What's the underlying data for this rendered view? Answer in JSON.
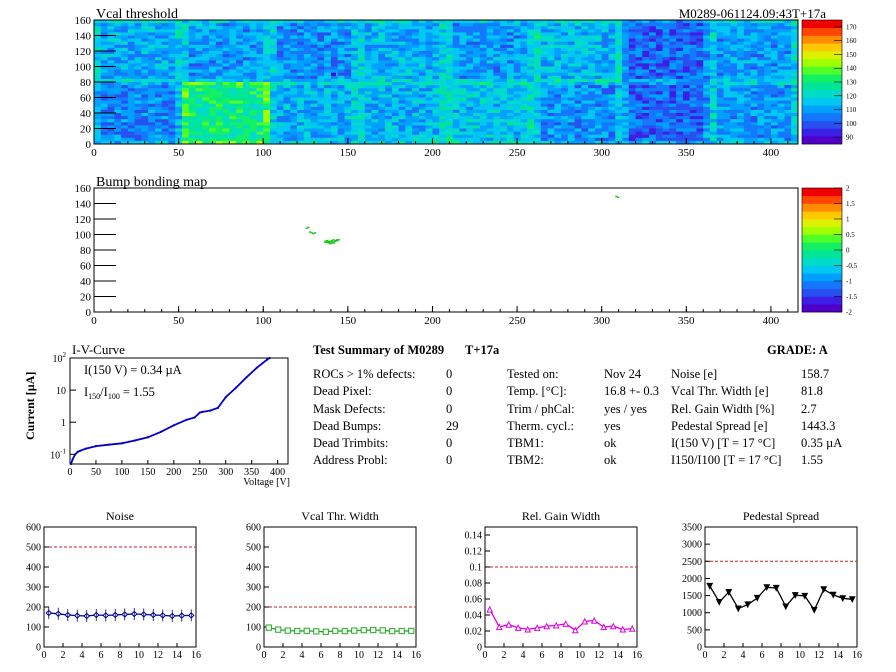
{
  "colors": {
    "palette": [
      "#5000c8",
      "#3c1ee6",
      "#2850f0",
      "#1478ff",
      "#00a0ff",
      "#00c8f0",
      "#00dcc8",
      "#00e696",
      "#14f064",
      "#50ff28",
      "#a0ff00",
      "#dcf000",
      "#ffc800",
      "#ff8c00",
      "#ff4600",
      "#f00000"
    ],
    "threshold_line": "#cc2222",
    "iv_curve": "#0000cc",
    "noise": "#00008b",
    "vcal": "#22aa22",
    "gain": "#e000e0",
    "pedestal": "#000000"
  },
  "vcal_map": {
    "title": "Vcal threshold",
    "run_label": "M0289-061124.09:43T+17a",
    "x_ticks": [
      "0",
      "50",
      "100",
      "150",
      "200",
      "250",
      "300",
      "350",
      "400"
    ],
    "y_ticks": [
      "0",
      "20",
      "40",
      "60",
      "80",
      "100",
      "120",
      "140",
      "160"
    ],
    "z_ticks": [
      "90",
      "100",
      "110",
      "120",
      "130",
      "140",
      "150",
      "160",
      "170"
    ]
  },
  "bump_map": {
    "title": "Bump bonding map",
    "x_ticks": [
      "0",
      "50",
      "100",
      "150",
      "200",
      "250",
      "300",
      "350",
      "400"
    ],
    "y_ticks": [
      "0",
      "20",
      "40",
      "60",
      "80",
      "100",
      "120",
      "140",
      "160"
    ],
    "z_ticks": [
      "-2",
      "-1.5",
      "-1",
      "-0.5",
      "0",
      "0.5",
      "1",
      "1.5",
      "2"
    ]
  },
  "iv": {
    "title": "I-V-Curve",
    "annotation_current": "I(150 V) = 0.34 µA",
    "annotation_ratio_label": "I",
    "annotation_ratio_sub1": "150",
    "annotation_ratio_slash": "/I",
    "annotation_ratio_sub2": "100",
    "annotation_ratio_value": "=  1.55",
    "ylabel": "Current [µA]",
    "xlabel": "Voltage [V]",
    "x_ticks": [
      "0",
      "50",
      "100",
      "150",
      "200",
      "250",
      "300",
      "350",
      "400"
    ],
    "y_ticks": [
      {
        "base": "10",
        "exp": "-1"
      },
      {
        "base": "1",
        "exp": ""
      },
      {
        "base": "10",
        "exp": ""
      },
      {
        "base": "10",
        "exp": "2"
      }
    ]
  },
  "summary": {
    "title": "Test Summary of M0289",
    "temp_tag": "T+17a",
    "grade": "GRADE:  A",
    "defects": [
      {
        "label": "ROCs > 1% defects:",
        "value": "0"
      },
      {
        "label": "Dead Pixel:",
        "value": "0"
      },
      {
        "label": "Mask Defects:",
        "value": "0"
      },
      {
        "label": "Dead Bumps:",
        "value": "29"
      },
      {
        "label": "Dead Trimbits:",
        "value": "0"
      },
      {
        "label": "Address Probl:",
        "value": "0"
      }
    ],
    "conditions": [
      {
        "label": "Tested on:",
        "value": "Nov 24"
      },
      {
        "label": "Temp. [°C]:",
        "value": "16.8 +- 0.3"
      },
      {
        "label": "Trim / phCal:",
        "value": "yes / yes"
      },
      {
        "label": "Therm. cycl.:",
        "value": "yes"
      },
      {
        "label": "TBM1:",
        "value": "ok"
      },
      {
        "label": "TBM2:",
        "value": "ok"
      }
    ],
    "results": [
      {
        "label": "Noise [e]",
        "value": "158.7"
      },
      {
        "label": "Vcal Thr. Width [e]",
        "value": "81.8"
      },
      {
        "label": "Rel. Gain Width [%]",
        "value": "2.7"
      },
      {
        "label": "Pedestal Spread [e]",
        "value": "1443.3"
      },
      {
        "label": "I(150 V) [T = 17 °C]",
        "value": "0.35 µA"
      },
      {
        "label": "I150/I100 [T = 17 °C]",
        "value": "1.55"
      }
    ]
  },
  "chart_data": [
    {
      "type": "heatmap",
      "title": "Vcal threshold",
      "xlim": [
        0,
        416
      ],
      "ylim": [
        0,
        160
      ],
      "zlim": [
        85,
        175
      ],
      "roc_means_top": [
        112,
        110,
        108,
        112,
        110,
        114,
        102,
        110
      ],
      "roc_means_bottom": [
        106,
        128,
        112,
        113,
        116,
        108,
        102,
        109
      ],
      "hot_cluster": {
        "x": [
          140,
          143
        ],
        "y": [
          88,
          92
        ],
        "value": 90
      }
    },
    {
      "type": "heatmap",
      "title": "Bump bonding map",
      "xlim": [
        0,
        416
      ],
      "ylim": [
        0,
        160
      ],
      "zlim": [
        -2,
        2
      ],
      "dead_bumps": [
        [
          125,
          108
        ],
        [
          126,
          109
        ],
        [
          127,
          103
        ],
        [
          128,
          102
        ],
        [
          129,
          101
        ],
        [
          130,
          102
        ],
        [
          137,
          92
        ],
        [
          138,
          91
        ],
        [
          139,
          91
        ],
        [
          140,
          92
        ],
        [
          141,
          93
        ],
        [
          142,
          92
        ],
        [
          143,
          93
        ],
        [
          136,
          90
        ],
        [
          137,
          90
        ],
        [
          138,
          90
        ],
        [
          139,
          89
        ],
        [
          140,
          90
        ],
        [
          141,
          90
        ],
        [
          142,
          91
        ],
        [
          138,
          89
        ],
        [
          139,
          88
        ],
        [
          140,
          89
        ],
        [
          141,
          89
        ],
        [
          143,
          92
        ],
        [
          144,
          93
        ],
        [
          136,
          91
        ],
        [
          308,
          149
        ],
        [
          309,
          148
        ]
      ]
    },
    {
      "type": "line",
      "title": "I-V-Curve",
      "xlabel": "Voltage [V]",
      "ylabel": "Current [µA]",
      "xlim": [
        0,
        420
      ],
      "ylim": [
        0.05,
        100
      ],
      "yscale": "log",
      "x": [
        2,
        5,
        10,
        15,
        20,
        30,
        50,
        75,
        100,
        125,
        150,
        175,
        200,
        225,
        240,
        250,
        255,
        270,
        285,
        300,
        320,
        340,
        360,
        380,
        385
      ],
      "y": [
        0.05,
        0.07,
        0.1,
        0.12,
        0.13,
        0.15,
        0.18,
        0.2,
        0.22,
        0.27,
        0.34,
        0.5,
        0.8,
        1.2,
        1.4,
        2.0,
        2.1,
        2.3,
        2.8,
        6,
        12,
        25,
        50,
        90,
        100
      ]
    },
    {
      "type": "line",
      "title": "Noise",
      "xlim": [
        0,
        16
      ],
      "ylim": [
        0,
        600
      ],
      "x_ticks": [
        "0",
        "2",
        "4",
        "6",
        "8",
        "10",
        "12",
        "14",
        "16"
      ],
      "y_ticks": [
        "0",
        "100",
        "200",
        "300",
        "400",
        "500",
        "600"
      ],
      "threshold": 500,
      "values": [
        170,
        166,
        160,
        157,
        155,
        160,
        158,
        160,
        163,
        165,
        163,
        160,
        158,
        155,
        157,
        158
      ]
    },
    {
      "type": "line",
      "title": "Vcal Thr. Width",
      "xlim": [
        0,
        16
      ],
      "ylim": [
        0,
        600
      ],
      "x_ticks": [
        "0",
        "2",
        "4",
        "6",
        "8",
        "10",
        "12",
        "14",
        "16"
      ],
      "y_ticks": [
        "0",
        "100",
        "200",
        "300",
        "400",
        "500",
        "600"
      ],
      "threshold": 200,
      "values": [
        97,
        87,
        82,
        80,
        81,
        78,
        76,
        81,
        79,
        82,
        84,
        85,
        83,
        79,
        80,
        81
      ]
    },
    {
      "type": "line",
      "title": "Rel. Gain Width",
      "xlim": [
        0,
        16
      ],
      "ylim": [
        0,
        0.15
      ],
      "x_ticks": [
        "0",
        "2",
        "4",
        "6",
        "8",
        "10",
        "12",
        "14",
        "16"
      ],
      "y_ticks": [
        "0",
        "0.02",
        "0.04",
        "0.06",
        "0.08",
        "0.1",
        "0.12",
        "0.14"
      ],
      "threshold": 0.1,
      "values": [
        0.047,
        0.025,
        0.028,
        0.024,
        0.022,
        0.024,
        0.026,
        0.027,
        0.029,
        0.021,
        0.032,
        0.033,
        0.025,
        0.026,
        0.022,
        0.023
      ]
    },
    {
      "type": "line",
      "title": "Pedestal Spread",
      "xlim": [
        0,
        16
      ],
      "ylim": [
        0,
        3500
      ],
      "x_ticks": [
        "0",
        "2",
        "4",
        "6",
        "8",
        "10",
        "12",
        "14",
        "16"
      ],
      "y_ticks": [
        "0",
        "500",
        "1000",
        "1500",
        "2000",
        "2500",
        "3000",
        "3500"
      ],
      "threshold": 2500,
      "values": [
        1780,
        1310,
        1600,
        1120,
        1240,
        1430,
        1740,
        1720,
        1180,
        1510,
        1490,
        1080,
        1680,
        1520,
        1420,
        1390
      ]
    }
  ]
}
